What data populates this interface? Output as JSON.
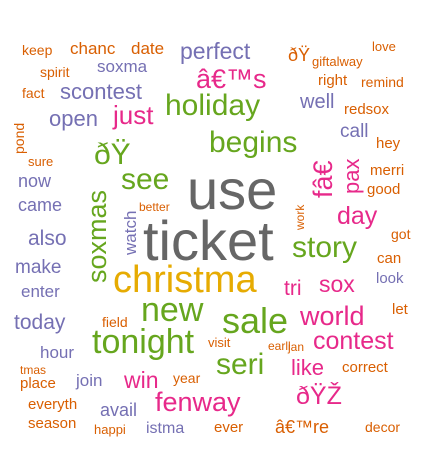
{
  "palette": {
    "gray": "#666666",
    "gold": "#e6ab02",
    "green": "#66a61e",
    "magenta": "#e7298a",
    "purple": "#7570b3",
    "orange": "#d95f02"
  },
  "words": [
    {
      "id": "ticket",
      "text": "ticket",
      "color": "gray"
    },
    {
      "id": "use",
      "text": "use",
      "color": "gray"
    },
    {
      "id": "christmas",
      "text": "christma",
      "color": "gold"
    },
    {
      "id": "sale",
      "text": "sale",
      "color": "green"
    },
    {
      "id": "tonight",
      "text": "tonight",
      "color": "green"
    },
    {
      "id": "new",
      "text": "new",
      "color": "green"
    },
    {
      "id": "holiday",
      "text": "holiday",
      "color": "green"
    },
    {
      "id": "begins",
      "text": "begins",
      "color": "green"
    },
    {
      "id": "see",
      "text": "see",
      "color": "green"
    },
    {
      "id": "story",
      "text": "story",
      "color": "green"
    },
    {
      "id": "seri",
      "text": "seri",
      "color": "green"
    },
    {
      "id": "soxmas",
      "text": "soxmas",
      "color": "green"
    },
    {
      "id": "fenway",
      "text": "fenway",
      "color": "magenta"
    },
    {
      "id": "world",
      "text": "world",
      "color": "magenta"
    },
    {
      "id": "contest",
      "text": "contest",
      "color": "magenta"
    },
    {
      "id": "day",
      "text": "day",
      "color": "magenta"
    },
    {
      "id": "sox",
      "text": "sox",
      "color": "magenta"
    },
    {
      "id": "just",
      "text": "just",
      "color": "magenta"
    },
    {
      "id": "win",
      "text": "win",
      "color": "magenta"
    },
    {
      "id": "like",
      "text": "like",
      "color": "magenta"
    },
    {
      "id": "pax",
      "text": "pax",
      "color": "magenta"
    },
    {
      "id": "fae",
      "text": "fâ€",
      "color": "magenta"
    },
    {
      "id": "eth1",
      "text": "ðŸ",
      "color": "green"
    },
    {
      "id": "eth2",
      "text": "ðŸŽ",
      "color": "magenta"
    },
    {
      "id": "tms",
      "text": "â€™s",
      "color": "magenta"
    },
    {
      "id": "tri",
      "text": "tri",
      "color": "magenta"
    },
    {
      "id": "perfect",
      "text": "perfect",
      "color": "purple"
    },
    {
      "id": "scontest",
      "text": "scontest",
      "color": "purple"
    },
    {
      "id": "open",
      "text": "open",
      "color": "purple"
    },
    {
      "id": "soxma",
      "text": "soxma",
      "color": "purple"
    },
    {
      "id": "now",
      "text": "now",
      "color": "purple"
    },
    {
      "id": "came",
      "text": "came",
      "color": "purple"
    },
    {
      "id": "also",
      "text": "also",
      "color": "purple"
    },
    {
      "id": "make",
      "text": "make",
      "color": "purple"
    },
    {
      "id": "enter",
      "text": "enter",
      "color": "purple"
    },
    {
      "id": "today",
      "text": "today",
      "color": "purple"
    },
    {
      "id": "hour",
      "text": "hour",
      "color": "purple"
    },
    {
      "id": "join",
      "text": "join",
      "color": "purple"
    },
    {
      "id": "avail",
      "text": "avail",
      "color": "purple"
    },
    {
      "id": "watch",
      "text": "watch",
      "color": "purple"
    },
    {
      "id": "call",
      "text": "call",
      "color": "purple"
    },
    {
      "id": "well",
      "text": "well",
      "color": "purple"
    },
    {
      "id": "look",
      "text": "look",
      "color": "purple"
    },
    {
      "id": "istma",
      "text": "istma",
      "color": "purple"
    },
    {
      "id": "keep",
      "text": "keep",
      "color": "orange"
    },
    {
      "id": "chanc",
      "text": "chanc",
      "color": "orange"
    },
    {
      "id": "date",
      "text": "date",
      "color": "orange"
    },
    {
      "id": "spirit",
      "text": "spirit",
      "color": "orange"
    },
    {
      "id": "fact",
      "text": "fact",
      "color": "orange"
    },
    {
      "id": "pond",
      "text": "pond",
      "color": "orange"
    },
    {
      "id": "sure",
      "text": "sure",
      "color": "orange"
    },
    {
      "id": "eth3",
      "text": "ðŸ",
      "color": "orange"
    },
    {
      "id": "giftalway",
      "text": "giftalway",
      "color": "orange"
    },
    {
      "id": "love",
      "text": "love",
      "color": "orange"
    },
    {
      "id": "remind",
      "text": "remind",
      "color": "orange"
    },
    {
      "id": "right",
      "text": "right",
      "color": "orange"
    },
    {
      "id": "redsox",
      "text": "redsox",
      "color": "orange"
    },
    {
      "id": "hey",
      "text": "hey",
      "color": "orange"
    },
    {
      "id": "merri",
      "text": "merri",
      "color": "orange"
    },
    {
      "id": "good",
      "text": "good",
      "color": "orange"
    },
    {
      "id": "got",
      "text": "got",
      "color": "orange"
    },
    {
      "id": "can",
      "text": "can",
      "color": "orange"
    },
    {
      "id": "let",
      "text": "let",
      "color": "orange"
    },
    {
      "id": "correct",
      "text": "correct",
      "color": "orange"
    },
    {
      "id": "decor",
      "text": "decor",
      "color": "orange"
    },
    {
      "id": "better",
      "text": "better",
      "color": "orange"
    },
    {
      "id": "work",
      "text": "work",
      "color": "orange"
    },
    {
      "id": "field",
      "text": "field",
      "color": "orange"
    },
    {
      "id": "visit",
      "text": "visit",
      "color": "orange"
    },
    {
      "id": "earli",
      "text": "earli",
      "color": "orange"
    },
    {
      "id": "jan",
      "text": "jan",
      "color": "orange"
    },
    {
      "id": "year",
      "text": "year",
      "color": "orange"
    },
    {
      "id": "tmas",
      "text": "tmas",
      "color": "orange"
    },
    {
      "id": "place",
      "text": "place",
      "color": "orange"
    },
    {
      "id": "everyth",
      "text": "everyth",
      "color": "orange"
    },
    {
      "id": "season",
      "text": "season",
      "color": "orange"
    },
    {
      "id": "happi",
      "text": "happi",
      "color": "orange"
    },
    {
      "id": "ever",
      "text": "ever",
      "color": "orange"
    },
    {
      "id": "tmre",
      "text": "â€™re",
      "color": "orange"
    }
  ]
}
